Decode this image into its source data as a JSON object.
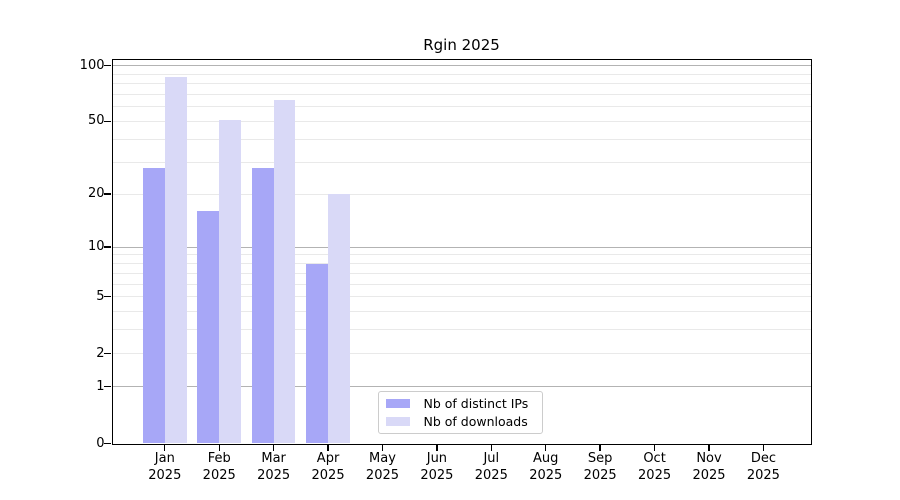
{
  "title": "Rgin 2025",
  "chart_data": {
    "type": "bar",
    "title": "Rgin 2025",
    "categories": [
      "Jan 2025",
      "Feb 2025",
      "Mar 2025",
      "Apr 2025",
      "May 2025",
      "Jun 2025",
      "Jul 2025",
      "Aug 2025",
      "Sep 2025",
      "Oct 2025",
      "Nov 2025",
      "Dec 2025"
    ],
    "series": [
      {
        "name": "Nb of distinct IPs",
        "color": "#a7a7f7",
        "values": [
          28,
          16,
          28,
          8,
          null,
          null,
          null,
          null,
          null,
          null,
          null,
          null
        ]
      },
      {
        "name": "Nb of downloads",
        "color": "#d9d9f7",
        "values": [
          87,
          51,
          65,
          20,
          null,
          null,
          null,
          null,
          null,
          null,
          null,
          null
        ]
      }
    ],
    "xlabel": "",
    "ylabel": "",
    "yscale": "log1p",
    "ylim": [
      0,
      108
    ],
    "yticks": [
      0,
      1,
      2,
      5,
      10,
      20,
      50,
      100
    ],
    "major_gridlines": [
      1,
      10,
      100
    ],
    "minor_gridlines": [
      2,
      3,
      4,
      5,
      6,
      7,
      8,
      9,
      20,
      30,
      40,
      50,
      60,
      70,
      80,
      90
    ],
    "grid": "both",
    "legend_position": "lower center",
    "colors": {
      "major_grid": "#b3b3b3",
      "minor_grid": "#e9e9e9",
      "axis": "#000000",
      "text": "#000000",
      "legend_border": "#cccccc"
    }
  }
}
